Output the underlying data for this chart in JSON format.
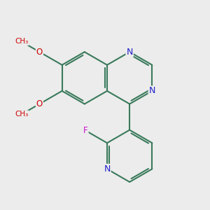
{
  "background_color": "#ececec",
  "bond_color": "#3a7a5c",
  "bond_width": 1.5,
  "atom_colors": {
    "N": "#2020cc",
    "O": "#cc0000",
    "F": "#cc10cc",
    "C": "#3a7a5c"
  },
  "font_size_atom": 8.5,
  "figsize": [
    3.0,
    3.0
  ],
  "dpi": 100
}
